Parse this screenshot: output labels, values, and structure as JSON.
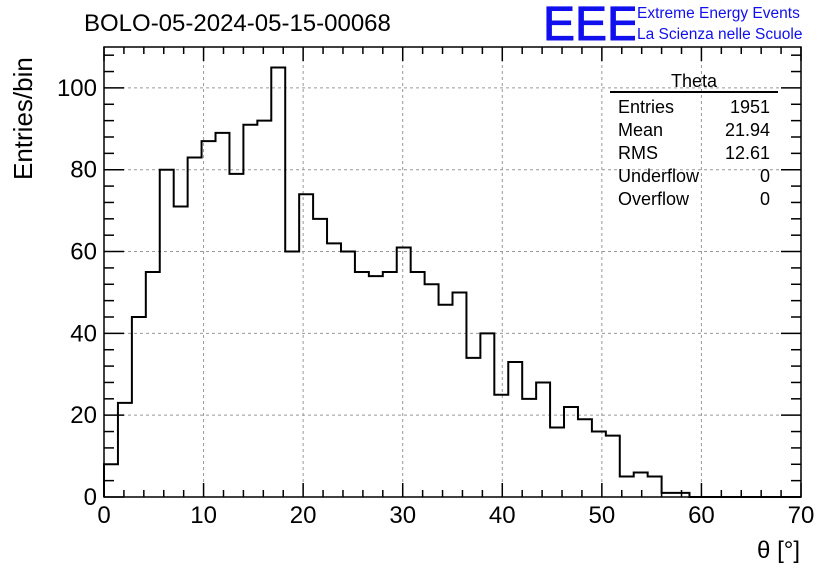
{
  "title": "BOLO-05-2024-05-15-00068",
  "logo": {
    "mark": "EEE",
    "line1": "Extreme Energy Events",
    "line2": "La Scienza nelle Scuole",
    "color": "#1010ee"
  },
  "stats": {
    "name": "Theta",
    "rows": [
      {
        "label": "Entries",
        "value": "1951"
      },
      {
        "label": "Mean",
        "value": "21.94"
      },
      {
        "label": "RMS",
        "value": "12.61"
      },
      {
        "label": "Underflow",
        "value": "0"
      },
      {
        "label": "Overflow",
        "value": "0"
      }
    ]
  },
  "chart_data": {
    "type": "histogram",
    "title": "BOLO-05-2024-05-15-00068",
    "xlabel": "θ [°]",
    "ylabel": "Entries/bin",
    "xlim": [
      0,
      70
    ],
    "ylim": [
      0,
      110
    ],
    "xticks": [
      0,
      10,
      20,
      30,
      40,
      50,
      60,
      70
    ],
    "yticks": [
      0,
      20,
      40,
      60,
      80,
      100
    ],
    "grid": true,
    "bin_width": 1.4,
    "bin_edges_start": 0,
    "values": [
      8,
      23,
      44,
      55,
      80,
      71,
      83,
      87,
      89,
      79,
      91,
      92,
      105,
      60,
      74,
      68,
      62,
      60,
      55,
      54,
      55,
      61,
      55,
      52,
      47,
      50,
      34,
      40,
      25,
      33,
      24,
      28,
      17,
      22,
      19,
      16,
      15,
      5,
      6,
      5,
      1,
      1,
      0,
      0,
      0,
      0,
      0,
      0,
      0,
      0
    ]
  }
}
